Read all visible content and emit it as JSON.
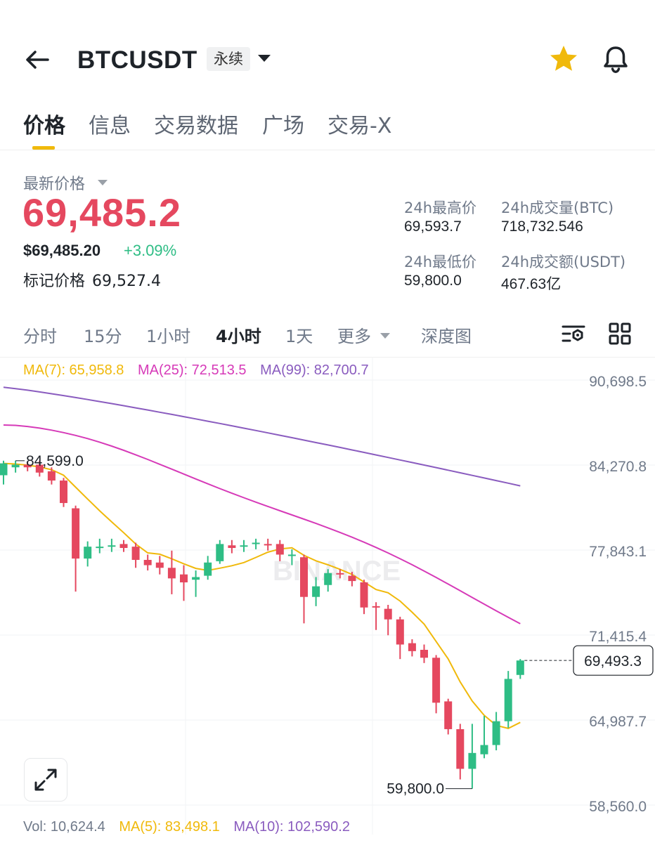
{
  "header": {
    "symbol": "BTCUSDT",
    "perp_tag": "永续"
  },
  "tabs": [
    {
      "label": "价格",
      "active": true
    },
    {
      "label": "信息"
    },
    {
      "label": "交易数据"
    },
    {
      "label": "广场"
    },
    {
      "label": "交易-X"
    }
  ],
  "price": {
    "latest_label": "最新价格",
    "last": "69,485.2",
    "usd": "$69,485.20",
    "change": "+3.09%",
    "mark_label": "标记价格",
    "mark_value": "69,527.4"
  },
  "stats": {
    "high_label": "24h最高价",
    "high_value": "69,593.7",
    "vol_btc_label": "24h成交量(BTC)",
    "vol_btc_value": "718,732.546",
    "low_label": "24h最低价",
    "low_value": "59,800.0",
    "vol_usdt_label": "24h成交额(USDT)",
    "vol_usdt_value": "467.63亿"
  },
  "intervals": [
    "分时",
    "15分",
    "1小时",
    "4小时",
    "1天",
    "更多",
    "深度图"
  ],
  "active_interval": "4小时",
  "ma_top": {
    "ma7": "MA(7): 65,958.8",
    "ma25": "MA(25): 72,513.5",
    "ma99": "MA(99): 82,700.7"
  },
  "ma_bottom": {
    "vol": "Vol: 10,624.4",
    "ma5": "MA(5): 83,498.1",
    "ma10": "MA(10): 102,590.2"
  },
  "colors": {
    "up": "#2ebd85",
    "down": "#e5485f",
    "ma7": "#f0b90b",
    "ma25": "#d63ab8",
    "ma99": "#8a5cbf",
    "accent": "#f0b90b"
  },
  "chart_data": {
    "type": "candlestick",
    "y_ticks": [
      "90,698.5",
      "84,270.8",
      "77,843.1",
      "71,415.4",
      "64,987.7",
      "58,560.0"
    ],
    "ylim": [
      58560.0,
      90698.5
    ],
    "high_marker": "84,599.0",
    "low_marker": "59,800.0",
    "current_price": "69,493.3",
    "watermark": "BINANCE",
    "candles": [
      {
        "o": 83500,
        "c": 84400,
        "h": 84600,
        "l": 82800
      },
      {
        "o": 84100,
        "c": 84300,
        "h": 84599,
        "l": 83700
      },
      {
        "o": 84300,
        "c": 84100,
        "h": 84500,
        "l": 83800
      },
      {
        "o": 84300,
        "c": 83700,
        "h": 84600,
        "l": 83400
      },
      {
        "o": 83800,
        "c": 83100,
        "h": 84100,
        "l": 82800
      },
      {
        "o": 83100,
        "c": 81400,
        "h": 83300,
        "l": 81100
      },
      {
        "o": 81000,
        "c": 77200,
        "h": 81200,
        "l": 74700
      },
      {
        "o": 77200,
        "c": 78100,
        "h": 78500,
        "l": 76600
      },
      {
        "o": 78000,
        "c": 78100,
        "h": 78700,
        "l": 77600
      },
      {
        "o": 78100,
        "c": 78200,
        "h": 78700,
        "l": 77700
      },
      {
        "o": 78300,
        "c": 78000,
        "h": 78600,
        "l": 77700
      },
      {
        "o": 78100,
        "c": 77100,
        "h": 78400,
        "l": 76500
      },
      {
        "o": 77100,
        "c": 76700,
        "h": 77500,
        "l": 76300
      },
      {
        "o": 76900,
        "c": 76500,
        "h": 77400,
        "l": 76000
      },
      {
        "o": 76500,
        "c": 75700,
        "h": 77800,
        "l": 74500
      },
      {
        "o": 76000,
        "c": 75400,
        "h": 76700,
        "l": 74000
      },
      {
        "o": 75600,
        "c": 75800,
        "h": 76300,
        "l": 74300
      },
      {
        "o": 75900,
        "c": 76900,
        "h": 77400,
        "l": 75600
      },
      {
        "o": 77000,
        "c": 78300,
        "h": 78600,
        "l": 76800
      },
      {
        "o": 78200,
        "c": 78000,
        "h": 78600,
        "l": 77600
      },
      {
        "o": 78100,
        "c": 78200,
        "h": 78600,
        "l": 77700
      },
      {
        "o": 78300,
        "c": 78400,
        "h": 78700,
        "l": 77900
      },
      {
        "o": 78300,
        "c": 78200,
        "h": 78700,
        "l": 77800
      },
      {
        "o": 78300,
        "c": 77500,
        "h": 78600,
        "l": 77000
      },
      {
        "o": 77400,
        "c": 77500,
        "h": 77900,
        "l": 76700
      },
      {
        "o": 77300,
        "c": 74300,
        "h": 77500,
        "l": 72300
      },
      {
        "o": 74300,
        "c": 75100,
        "h": 75800,
        "l": 73600
      },
      {
        "o": 75200,
        "c": 76100,
        "h": 76400,
        "l": 74700
      },
      {
        "o": 76100,
        "c": 76000,
        "h": 76400,
        "l": 75700
      },
      {
        "o": 75900,
        "c": 75500,
        "h": 76200,
        "l": 75100
      },
      {
        "o": 75400,
        "c": 73500,
        "h": 75600,
        "l": 73000
      },
      {
        "o": 73600,
        "c": 73500,
        "h": 73900,
        "l": 71800
      },
      {
        "o": 73400,
        "c": 72600,
        "h": 73700,
        "l": 71400
      },
      {
        "o": 72600,
        "c": 70700,
        "h": 72800,
        "l": 69600
      },
      {
        "o": 70800,
        "c": 70200,
        "h": 71100,
        "l": 69800
      },
      {
        "o": 70300,
        "c": 69700,
        "h": 70700,
        "l": 69300
      },
      {
        "o": 69700,
        "c": 66300,
        "h": 69900,
        "l": 65500
      },
      {
        "o": 66400,
        "c": 64300,
        "h": 66600,
        "l": 63900
      },
      {
        "o": 64300,
        "c": 61300,
        "h": 64700,
        "l": 60500
      },
      {
        "o": 61300,
        "c": 62500,
        "h": 64700,
        "l": 59800
      },
      {
        "o": 62400,
        "c": 63100,
        "h": 65300,
        "l": 62100
      },
      {
        "o": 63100,
        "c": 64900,
        "h": 65600,
        "l": 62700
      },
      {
        "o": 64900,
        "c": 68100,
        "h": 68700,
        "l": 64400
      },
      {
        "o": 68400,
        "c": 69493.3,
        "h": 69600,
        "l": 68100
      }
    ]
  }
}
